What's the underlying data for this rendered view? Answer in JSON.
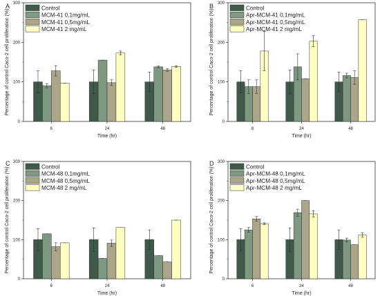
{
  "colors": {
    "Control": "#3f5a4b",
    "s1": "#7e9881",
    "s2": "#aaa58b",
    "s3": "#ffffc2",
    "edge": "#2d2d2d",
    "axis": "#333333"
  },
  "chart_data": [
    {
      "panel": "A",
      "type": "bar",
      "categories": [
        "6",
        "24",
        "48"
      ],
      "xlabel": "Time (hr)",
      "ylabel": "Percentage of control Caco-2 cell proliferation (%)",
      "ylim": [
        0,
        300
      ],
      "yticks": [
        "0",
        "100",
        "200",
        "300"
      ],
      "legend": "top-left",
      "series": [
        {
          "name": "Control",
          "values": [
            100,
            100,
            100
          ],
          "errors": [
            28,
            30,
            25
          ]
        },
        {
          "name": "MCM-41 0,1mg/mL",
          "values": [
            90,
            155,
            138
          ],
          "errors": [
            5,
            0,
            2
          ]
        },
        {
          "name": "MCM-41 0,5mg/mL",
          "values": [
            128,
            98,
            130
          ],
          "errors": [
            13,
            7,
            3
          ]
        },
        {
          "name": "MCM-41 2 mg/mL",
          "values": [
            97,
            173,
            139
          ],
          "errors": [
            0,
            5,
            2
          ]
        }
      ]
    },
    {
      "panel": "B",
      "type": "bar",
      "categories": [
        "6",
        "24",
        "48"
      ],
      "xlabel": "Time (hr)",
      "ylabel": "Percentage of control Caco-2 cell proliferation (%)",
      "ylim": [
        0,
        300
      ],
      "yticks": [
        "0",
        "100",
        "200",
        "300"
      ],
      "legend": "top-left",
      "series": [
        {
          "name": "Control",
          "values": [
            100,
            100,
            100
          ],
          "errors": [
            28,
            30,
            25
          ]
        },
        {
          "name": "Apr-MCM-41 0,1mg/mL",
          "values": [
            88,
            138,
            116
          ],
          "errors": [
            17,
            33,
            6
          ]
        },
        {
          "name": "Apr-MCM-41 0,5mg/mL",
          "values": [
            88,
            108,
            111
          ],
          "errors": [
            17,
            0,
            17
          ]
        },
        {
          "name": "Apr-MCM-41 2 mg/mL",
          "values": [
            178,
            203,
            257
          ],
          "errors": [
            50,
            14,
            0
          ]
        }
      ]
    },
    {
      "panel": "C",
      "type": "bar",
      "categories": [
        "6",
        "24",
        "48"
      ],
      "xlabel": "Time (hr)",
      "ylabel": "Percentage of control Caco-2 cell proliferation (%)",
      "ylim": [
        0,
        300
      ],
      "yticks": [
        "0",
        "100",
        "200",
        "300"
      ],
      "legend": "top-left",
      "series": [
        {
          "name": "Control",
          "values": [
            100,
            100,
            100
          ],
          "errors": [
            28,
            30,
            25
          ]
        },
        {
          "name": "MCM-48 0,1mg/mL",
          "values": [
            115,
            52,
            59
          ],
          "errors": [
            0,
            0,
            0
          ]
        },
        {
          "name": "MCM-48 0,5mg/mL",
          "values": [
            82,
            91,
            43
          ],
          "errors": [
            10,
            8,
            0
          ]
        },
        {
          "name": "MCM-48 2 mg/mL",
          "values": [
            92,
            131,
            150
          ],
          "errors": [
            0,
            0,
            0
          ]
        }
      ]
    },
    {
      "panel": "D",
      "type": "bar",
      "categories": [
        "6",
        "24",
        "48"
      ],
      "xlabel": "Time (hr)",
      "ylabel": "Percentage of control Caco-2 cell proliferation (%)",
      "ylim": [
        0,
        300
      ],
      "yticks": [
        "0",
        "100",
        "200",
        "300"
      ],
      "legend": "top-left",
      "series": [
        {
          "name": "Control",
          "values": [
            100,
            100,
            100
          ],
          "errors": [
            28,
            30,
            25
          ]
        },
        {
          "name": "Apr-MCM-48 0,1mg/mL",
          "values": [
            125,
            169,
            99
          ],
          "errors": [
            6,
            9,
            5
          ]
        },
        {
          "name": "Apr-MCM-48 0,5mg/mL",
          "values": [
            153,
            200,
            87
          ],
          "errors": [
            6,
            0,
            0
          ]
        },
        {
          "name": "Apr-MCM-48 2 mg/mL",
          "values": [
            141,
            166,
            112
          ],
          "errors": [
            2,
            8,
            6
          ]
        }
      ]
    }
  ]
}
